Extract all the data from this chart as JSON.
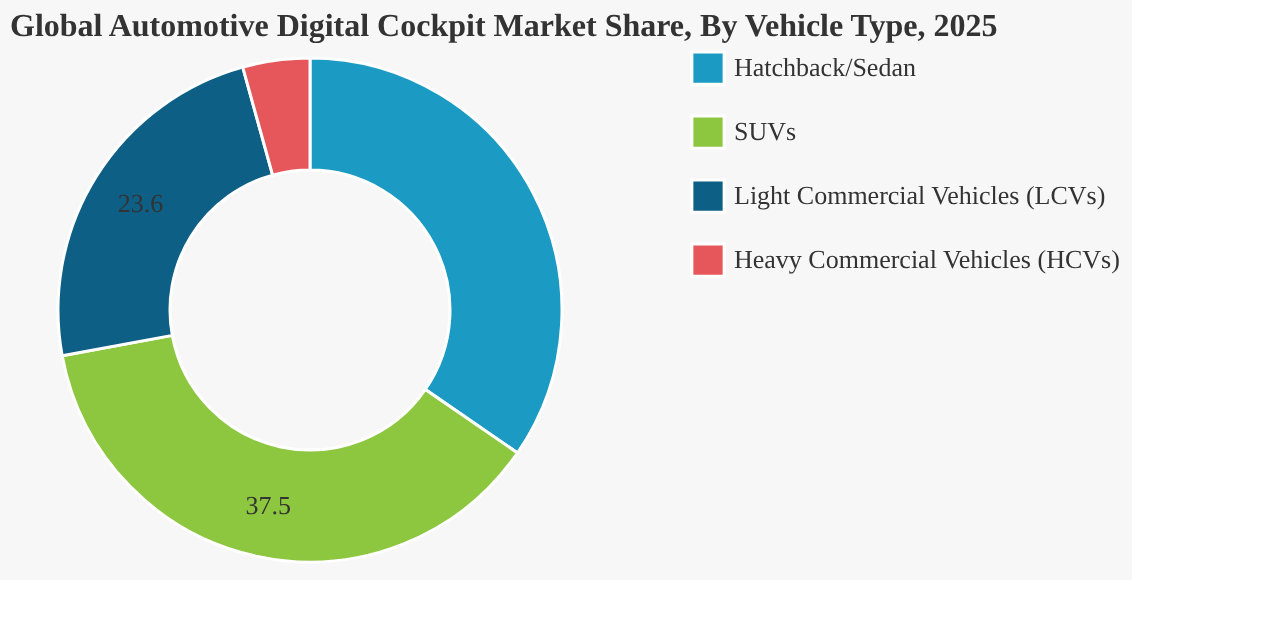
{
  "chart_data": {
    "type": "donut",
    "title": "Global Automotive Digital Cockpit Market Share, By Vehicle Type, 2025",
    "categories": [
      "Hatchback/Sedan",
      "SUVs",
      "Light Commercial Vehicles (LCVs)",
      "Heavy Commercial Vehicles (HCVs)"
    ],
    "values": [
      34.6,
      37.5,
      23.6,
      4.3
    ],
    "value_labels": [
      null,
      "37.5",
      "23.6",
      null
    ],
    "colors": [
      "#1b9bc4",
      "#8dc63f",
      "#0d5f85",
      "#e5575a"
    ],
    "legend": "right"
  }
}
